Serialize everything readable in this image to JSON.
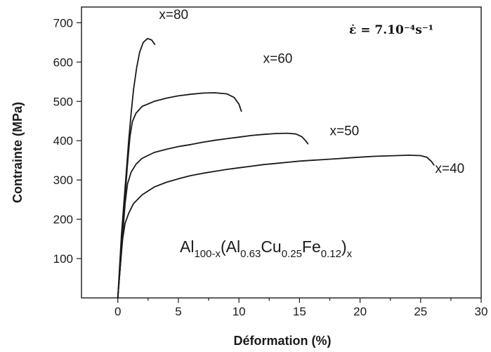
{
  "chart_data": {
    "type": "line",
    "xlabel": "Déformation (%)",
    "ylabel": "Contrainte (MPa)",
    "xlim": [
      -3,
      30
    ],
    "ylim": [
      0,
      740
    ],
    "xticks": [
      0,
      5,
      10,
      15,
      20,
      25,
      30
    ],
    "yticks": [
      100,
      200,
      300,
      400,
      500,
      600,
      700
    ],
    "grid": false,
    "annotations": {
      "strain_rate": "ε̇ = 7.10⁻⁴s⁻¹",
      "alloy_formula": {
        "base": "Al",
        "base_sub": "100-x",
        "open": "(Al",
        "sub1": "0.63",
        "mid1": "Cu",
        "sub2": "0.25",
        "mid2": "Fe",
        "sub3": "0.12",
        "close": ")",
        "close_sub": "x"
      }
    },
    "series": [
      {
        "name": "x=80",
        "label": "x=80",
        "points": [
          [
            0,
            0
          ],
          [
            0.15,
            80
          ],
          [
            0.3,
            160
          ],
          [
            0.5,
            240
          ],
          [
            0.7,
            320
          ],
          [
            0.9,
            400
          ],
          [
            1.1,
            470
          ],
          [
            1.3,
            530
          ],
          [
            1.55,
            585
          ],
          [
            1.8,
            625
          ],
          [
            2.1,
            650
          ],
          [
            2.45,
            660
          ],
          [
            2.8,
            656
          ],
          [
            3.05,
            645
          ]
        ]
      },
      {
        "name": "x=60",
        "label": "x=60",
        "points": [
          [
            0,
            0
          ],
          [
            0.2,
            80
          ],
          [
            0.4,
            170
          ],
          [
            0.6,
            260
          ],
          [
            0.8,
            340
          ],
          [
            1.0,
            410
          ],
          [
            1.2,
            448
          ],
          [
            1.5,
            470
          ],
          [
            2.0,
            487
          ],
          [
            3.0,
            500
          ],
          [
            4.0,
            508
          ],
          [
            5.0,
            514
          ],
          [
            6.0,
            518
          ],
          [
            7.0,
            521
          ],
          [
            8.0,
            522
          ],
          [
            9.0,
            519
          ],
          [
            9.6,
            510
          ],
          [
            10.0,
            493
          ],
          [
            10.2,
            475
          ]
        ]
      },
      {
        "name": "x=50",
        "label": "x=50",
        "points": [
          [
            0,
            0
          ],
          [
            0.2,
            80
          ],
          [
            0.4,
            160
          ],
          [
            0.6,
            240
          ],
          [
            0.8,
            290
          ],
          [
            1.1,
            320
          ],
          [
            1.5,
            340
          ],
          [
            2.0,
            355
          ],
          [
            3.0,
            370
          ],
          [
            4.0,
            378
          ],
          [
            5.0,
            385
          ],
          [
            6.0,
            390
          ],
          [
            7.0,
            396
          ],
          [
            8.0,
            401
          ],
          [
            9.0,
            405
          ],
          [
            10.0,
            409
          ],
          [
            11.0,
            413
          ],
          [
            12.0,
            416
          ],
          [
            13.0,
            418
          ],
          [
            14.0,
            419
          ],
          [
            14.7,
            417
          ],
          [
            15.2,
            410
          ],
          [
            15.5,
            400
          ],
          [
            15.7,
            392
          ]
        ]
      },
      {
        "name": "x=40",
        "label": "x=40",
        "points": [
          [
            0,
            0
          ],
          [
            0.2,
            80
          ],
          [
            0.4,
            150
          ],
          [
            0.6,
            190
          ],
          [
            0.9,
            215
          ],
          [
            1.3,
            240
          ],
          [
            2.0,
            262
          ],
          [
            3.0,
            282
          ],
          [
            4.0,
            294
          ],
          [
            5.0,
            303
          ],
          [
            6.0,
            311
          ],
          [
            7.0,
            317
          ],
          [
            8.0,
            322
          ],
          [
            9.0,
            327
          ],
          [
            10.0,
            331
          ],
          [
            11.0,
            335
          ],
          [
            12.0,
            339
          ],
          [
            13.0,
            342
          ],
          [
            14.0,
            345
          ],
          [
            15.0,
            348
          ],
          [
            16.0,
            350
          ],
          [
            17.0,
            352
          ],
          [
            18.0,
            354
          ],
          [
            19.0,
            356
          ],
          [
            20.0,
            358
          ],
          [
            21.0,
            360
          ],
          [
            22.0,
            361
          ],
          [
            23.0,
            362
          ],
          [
            24.0,
            363
          ],
          [
            25.0,
            362
          ],
          [
            25.5,
            358
          ],
          [
            25.9,
            347
          ],
          [
            26.1,
            338
          ]
        ]
      }
    ]
  }
}
